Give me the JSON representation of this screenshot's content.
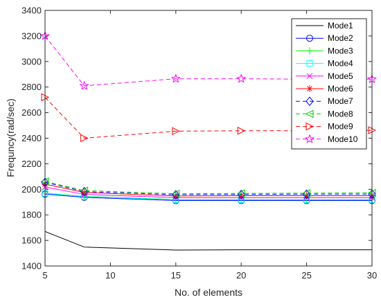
{
  "chart_data": {
    "type": "line",
    "title": "",
    "xlabel": "No. of elements",
    "ylabel": "Frequncy(rad/sec)",
    "xlim": [
      5,
      30
    ],
    "ylim": [
      1400,
      3400
    ],
    "xticks": [
      5,
      10,
      15,
      20,
      25,
      30
    ],
    "yticks": [
      1400,
      1600,
      1800,
      2000,
      2200,
      2400,
      2600,
      2800,
      3000,
      3200,
      3400
    ],
    "grid": false,
    "legend_position": "top-right",
    "x": [
      5,
      8,
      15,
      20,
      25,
      30
    ],
    "series": [
      {
        "name": "Mode1",
        "values": [
          1670,
          1548,
          1525,
          1527,
          1527,
          1527
        ],
        "color": "#000000",
        "dash": "solid",
        "marker": "none"
      },
      {
        "name": "Mode2",
        "values": [
          1962,
          1937,
          1912,
          1912,
          1912,
          1912
        ],
        "color": "#0000ff",
        "dash": "solid",
        "marker": "circle"
      },
      {
        "name": "Mode3",
        "values": [
          1970,
          1945,
          1920,
          1920,
          1920,
          1920
        ],
        "color": "#00ff00",
        "dash": "solid",
        "marker": "plus"
      },
      {
        "name": "Mode4",
        "values": [
          1968,
          1943,
          1918,
          1918,
          1918,
          1918
        ],
        "color": "#00ffff",
        "dash": "solid",
        "marker": "square"
      },
      {
        "name": "Mode5",
        "values": [
          2018,
          1960,
          1935,
          1935,
          1935,
          1935
        ],
        "color": "#ff00ff",
        "dash": "solid",
        "marker": "x"
      },
      {
        "name": "Mode6",
        "values": [
          2040,
          1975,
          1948,
          1950,
          1950,
          1950
        ],
        "color": "#ff0000",
        "dash": "solid",
        "marker": "asterisk"
      },
      {
        "name": "Mode7",
        "values": [
          2055,
          1982,
          1958,
          1960,
          1962,
          1962
        ],
        "color": "#0000ff",
        "dash": "dashed",
        "marker": "diamond"
      },
      {
        "name": "Mode8",
        "values": [
          2062,
          1990,
          1965,
          1968,
          1970,
          1972
        ],
        "color": "#00cc00",
        "dash": "dashed",
        "marker": "triangle-left"
      },
      {
        "name": "Mode9",
        "values": [
          2720,
          2400,
          2455,
          2458,
          2458,
          2462
        ],
        "color": "#ff0000",
        "dash": "dashed",
        "marker": "triangle-right"
      },
      {
        "name": "Mode10",
        "values": [
          3200,
          2810,
          2865,
          2865,
          2862,
          2862
        ],
        "color": "#ff00ff",
        "dash": "dashed",
        "marker": "star"
      }
    ]
  }
}
